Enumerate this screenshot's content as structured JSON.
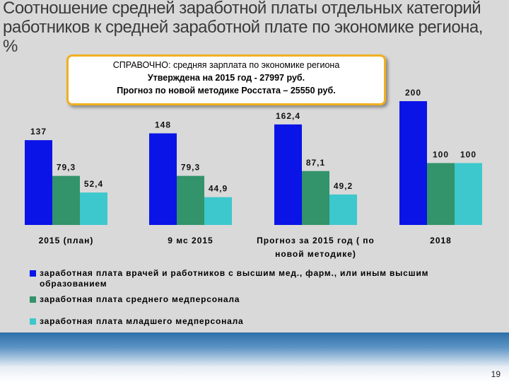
{
  "chart_data": {
    "type": "bar",
    "title": "Соотношение средней заработной платы отдельных категорий работников к средней заработной плате по экономике региона, %",
    "note": [
      "СПРАВОЧНО: средняя зарплата по экономике региона",
      "Утверждена на 2015 год -  27997 руб.",
      "Прогноз по новой методике Росстата – 25550 руб."
    ],
    "categories": [
      "2015 (план)",
      "9 мс 2015",
      "Прогноз за 2015 год ( по новой методике)",
      "2018"
    ],
    "series": [
      {
        "name": "заработная плата врачей и работников с высшим мед., фарм., или иным высшим образованием",
        "color": "#0a14e6",
        "values": [
          137,
          148,
          162.4,
          200
        ],
        "value_labels": [
          "137",
          "148",
          "162,4",
          "200"
        ]
      },
      {
        "name": "заработная плата среднего медперсонала",
        "color": "#33936a",
        "values": [
          79.3,
          79.3,
          87.1,
          100
        ],
        "value_labels": [
          "79,3",
          "79,3",
          "87,1",
          "100"
        ]
      },
      {
        "name": "заработная плата младшего медперсонала",
        "color": "#3cc8cc",
        "values": [
          52.4,
          44.9,
          49.2,
          100
        ],
        "value_labels": [
          "52,4",
          "44,9",
          "49,2",
          "100"
        ]
      }
    ]
  },
  "page_number": "19"
}
